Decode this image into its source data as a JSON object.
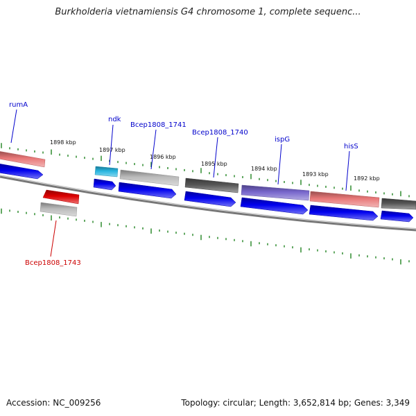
{
  "title": "Burkholderia vietnamiensis G4 chromosome 1, complete sequenc...",
  "footer": {
    "accession": "Accession: NC_009256",
    "summary": "Topology: circular; Length: 3,652,814 bp; Genes: 3,349"
  },
  "colors": {
    "backbone": "#777777",
    "tick": "#2e8b2e",
    "cds_forward": "#0000ee",
    "forward_label": "#0000cc",
    "reverse_label": "#cc0000"
  },
  "kbp_labels": [
    "1898 kbp",
    "1897 kbp",
    "1896 kbp",
    "1895 kbp",
    "1894 kbp",
    "1893 kbp",
    "1892 kbp"
  ],
  "gene_labels": [
    {
      "text": "rumA",
      "strand": "forward"
    },
    {
      "text": "ndk",
      "strand": "forward"
    },
    {
      "text": "Bcep1808_1741",
      "strand": "forward"
    },
    {
      "text": "Bcep1808_1740",
      "strand": "forward"
    },
    {
      "text": "ispG",
      "strand": "forward"
    },
    {
      "text": "hisS",
      "strand": "forward"
    },
    {
      "text": "Bcep1808_1743",
      "strand": "reverse"
    }
  ],
  "features": [
    {
      "name": "rumA-feature",
      "color": "#e87878"
    },
    {
      "name": "ndk-feature",
      "color": "#29b6e0"
    },
    {
      "name": "bcep1808-1741-feature",
      "color": "#bbbbbb"
    },
    {
      "name": "bcep1808-1740-feature",
      "color": "#555555"
    },
    {
      "name": "ispG-feature",
      "color": "#7766cc"
    },
    {
      "name": "hisS-feature",
      "color": "#e87878"
    },
    {
      "name": "right-edge-feature",
      "color": "#555555"
    },
    {
      "name": "bcep1808-1743-feature",
      "color": "#dd0000"
    }
  ]
}
